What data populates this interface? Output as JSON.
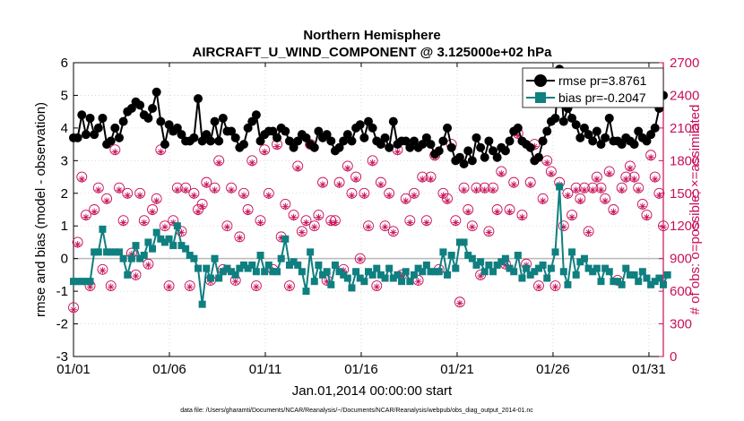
{
  "chart_data": {
    "type": "line",
    "title": "Northern Hemisphere",
    "subtitle": "AIRCRAFT_U_WIND_COMPONENT @ 3.125000e+02 hPa",
    "xlabel": "Jan.01,2014 00:00:00 start",
    "ylabel_left": "rmse and bias (model - observation)",
    "ylabel_right": "# of obs: o=possible; ×=assimilated",
    "footer": "data file: /Users/gharamti/Documents/NCAR/Reanalysis/~/Documents/NCAR/Reanalysis/webpub/obs_diag_output_2014-01.nc",
    "xlim": [
      0,
      30.75
    ],
    "ylim_left": [
      -3,
      6
    ],
    "ylim_right": [
      0,
      2700
    ],
    "x_ticks": [
      0,
      5,
      10,
      15,
      20,
      25,
      30
    ],
    "x_tick_labels": [
      "01/01",
      "01/06",
      "01/11",
      "01/16",
      "01/21",
      "01/26",
      "01/31"
    ],
    "y_left_ticks": [
      -3,
      -2,
      -1,
      0,
      1,
      2,
      3,
      4,
      5,
      6
    ],
    "y_left_tick_labels": [
      "-3",
      "-2",
      "-1",
      "0",
      "1",
      "2",
      "3",
      "4",
      "5",
      "6"
    ],
    "y_right_ticks": [
      0,
      300,
      600,
      900,
      1200,
      1500,
      1800,
      2100,
      2400,
      2700
    ],
    "y_right_tick_labels": [
      "0",
      "300",
      "600",
      "900",
      "1200",
      "1500",
      "1800",
      "2100",
      "2400",
      "2700"
    ],
    "legend_position": "top-right",
    "colors": {
      "rmse": "#000000",
      "bias": "#0f7f80",
      "obs": "#c8105a",
      "zero_line": "#b9b9b9"
    },
    "series": [
      {
        "name": "rmse pr=3.8761",
        "axis": "left",
        "values": [
          3.7,
          3.7,
          4.4,
          3.8,
          4.3,
          3.8,
          4.0,
          4.3,
          3.5,
          3.6,
          4.0,
          3.7,
          4.2,
          4.5,
          4.6,
          4.8,
          4.7,
          4.4,
          4.3,
          4.6,
          5.1,
          4.2,
          3.5,
          4.1,
          3.9,
          4.0,
          3.8,
          3.6,
          3.6,
          3.7,
          4.9,
          3.6,
          3.8,
          3.6,
          4.2,
          3.6,
          4.3,
          3.9,
          3.9,
          3.7,
          3.4,
          3.5,
          4.0,
          4.2,
          4.4,
          3.6,
          3.8,
          3.9,
          3.9,
          3.7,
          4.0,
          3.9,
          3.6,
          3.4,
          3.6,
          3.8,
          3.7,
          3.5,
          3.4,
          3.9,
          3.7,
          3.8,
          3.6,
          3.3,
          3.4,
          3.6,
          3.8,
          3.6,
          4.0,
          4.1,
          3.7,
          4.2,
          4.0,
          3.6,
          3.5,
          3.7,
          3.4,
          4.2,
          3.5,
          3.6,
          3.6,
          3.4,
          3.6,
          3.4,
          3.5,
          3.7,
          3.5,
          3.2,
          3.3,
          3.6,
          4.0,
          3.4,
          3.0,
          3.1,
          2.9,
          3.3,
          3.0,
          3.7,
          3.4,
          3.1,
          3.6,
          3.3,
          3.1,
          3.4,
          3.3,
          3.6,
          3.9,
          4.0,
          3.6,
          3.5,
          3.4,
          3.0,
          3.1,
          3.6,
          3.9,
          4.2,
          4.3,
          5.8,
          4.2,
          4.6,
          4.3,
          4.1,
          3.7,
          4.0,
          3.8,
          3.6,
          3.9,
          3.5,
          3.7,
          4.3,
          3.6,
          3.6,
          3.5,
          3.7,
          3.6,
          3.5,
          3.9,
          3.7,
          3.6,
          3.8,
          4.0,
          4.6,
          5.0
        ]
      },
      {
        "name": "bias pr=-0.2047",
        "axis": "left",
        "values": [
          -0.7,
          -0.7,
          -0.7,
          -0.7,
          -0.7,
          0.2,
          0.2,
          0.9,
          0.2,
          0.2,
          0.2,
          0.2,
          0.0,
          -0.5,
          0.0,
          0.4,
          0.0,
          0.1,
          0.5,
          0.3,
          0.8,
          0.6,
          0.5,
          0.6,
          0.4,
          1.0,
          0.4,
          0.3,
          0.1,
          0.0,
          -0.3,
          -1.4,
          -0.3,
          -0.6,
          0.0,
          -0.6,
          -0.4,
          -0.3,
          -0.4,
          -0.5,
          -0.3,
          -0.2,
          -0.3,
          -0.2,
          -0.4,
          0.1,
          -0.4,
          -0.2,
          -0.4,
          -0.4,
          0.0,
          0.6,
          -0.2,
          -0.1,
          -0.2,
          -0.4,
          -1.0,
          0.2,
          -0.7,
          -0.2,
          -0.5,
          -0.4,
          -0.8,
          -0.2,
          -0.4,
          -0.5,
          -0.6,
          -0.9,
          -0.4,
          -0.6,
          -0.7,
          -0.4,
          -0.5,
          -0.3,
          -0.5,
          -0.6,
          -0.3,
          -0.6,
          -0.5,
          -0.7,
          -0.4,
          -0.7,
          -0.5,
          -0.3,
          -0.4,
          -0.2,
          -0.4,
          -0.4,
          -0.4,
          0.2,
          -0.5,
          0.1,
          -0.3,
          0.5,
          0.5,
          0.1,
          0.0,
          -0.2,
          -0.1,
          -0.4,
          -0.2,
          -0.4,
          -0.2,
          -0.1,
          0.0,
          -0.3,
          -0.4,
          0.1,
          -0.6,
          -0.3,
          -0.5,
          -0.4,
          -0.3,
          -0.2,
          -0.6,
          -0.3,
          0.2,
          2.2,
          -0.4,
          -0.8,
          0.2,
          -0.5,
          -0.1,
          0.0,
          -0.3,
          -0.4,
          -0.3,
          -0.7,
          -0.3,
          -0.4,
          -0.7,
          -0.7,
          -0.8,
          -0.3,
          -0.5,
          -0.5,
          -0.7,
          -0.4,
          -0.6,
          -0.8,
          -0.7,
          -0.6,
          -0.8,
          -0.5
        ]
      },
      {
        "name": "obs possible",
        "axis": "right",
        "values": [
          450,
          1050,
          1650,
          1300,
          650,
          1350,
          1550,
          800,
          1450,
          650,
          1900,
          1550,
          1250,
          1500,
          950,
          750,
          1500,
          1250,
          850,
          1350,
          1450,
          1900,
          1200,
          650,
          1250,
          1550,
          1150,
          1550,
          650,
          1500,
          1350,
          1400,
          1600,
          700,
          1550,
          1800,
          800,
          1200,
          1550,
          700,
          1100,
          1500,
          1350,
          1800,
          650,
          1250,
          1900,
          1500,
          800,
          1950,
          1100,
          1400,
          650,
          1300,
          1750,
          1150,
          1250,
          1950,
          1200,
          1300,
          1600,
          700,
          1250,
          1250,
          1600,
          800,
          1750,
          1500,
          1650,
          900,
          1500,
          1200,
          1800,
          650,
          1600,
          1200,
          1500,
          1150,
          1900,
          750,
          1450,
          1250,
          1500,
          700,
          1650,
          1250,
          1650,
          1850,
          800,
          1500,
          1450,
          1950,
          1250,
          500,
          1550,
          1350,
          1200,
          1550,
          750,
          1550,
          1150,
          1550,
          1350,
          1700,
          850,
          1350,
          1600,
          2050,
          1300,
          850,
          1600,
          1950,
          650,
          1450,
          1800,
          1700,
          650,
          1600,
          1200,
          1500,
          1300,
          1550,
          1450,
          1550,
          1150,
          1550,
          1650,
          1550,
          1450,
          1700,
          1350,
          700,
          1550,
          1650,
          1750,
          1650,
          1550,
          1400,
          1300,
          1850,
          1650,
          1500,
          1200,
          0
        ]
      },
      {
        "name": "obs assimilated",
        "axis": "right",
        "values": [
          430,
          1030,
          1630,
          1280,
          640,
          1330,
          1530,
          790,
          1430,
          640,
          1880,
          1530,
          1230,
          1480,
          940,
          740,
          1480,
          1230,
          840,
          1330,
          1430,
          1880,
          1190,
          640,
          1230,
          1530,
          1140,
          1530,
          640,
          1480,
          1330,
          1380,
          1580,
          690,
          1530,
          1780,
          790,
          1190,
          1530,
          690,
          1090,
          1480,
          1330,
          1780,
          640,
          1230,
          1880,
          1480,
          790,
          1930,
          1090,
          1380,
          640,
          1280,
          1730,
          1140,
          1230,
          1930,
          1190,
          1280,
          1580,
          690,
          1230,
          1230,
          1580,
          790,
          1730,
          1480,
          1630,
          890,
          1480,
          1190,
          1780,
          640,
          1580,
          1190,
          1480,
          1140,
          1880,
          740,
          1430,
          1230,
          1480,
          690,
          1630,
          1230,
          1630,
          1830,
          790,
          1480,
          1430,
          1930,
          1230,
          490,
          1530,
          1330,
          1190,
          1530,
          740,
          1530,
          1140,
          1530,
          1330,
          1680,
          840,
          1330,
          1580,
          2030,
          1280,
          840,
          1580,
          1930,
          640,
          1430,
          1780,
          1680,
          640,
          1580,
          1190,
          1480,
          1280,
          1530,
          1430,
          1530,
          1140,
          1530,
          1630,
          1530,
          1430,
          1680,
          1330,
          690,
          1530,
          1630,
          1730,
          1630,
          1530,
          1380,
          1280,
          1830,
          1630,
          1480,
          1190,
          0
        ]
      }
    ]
  }
}
